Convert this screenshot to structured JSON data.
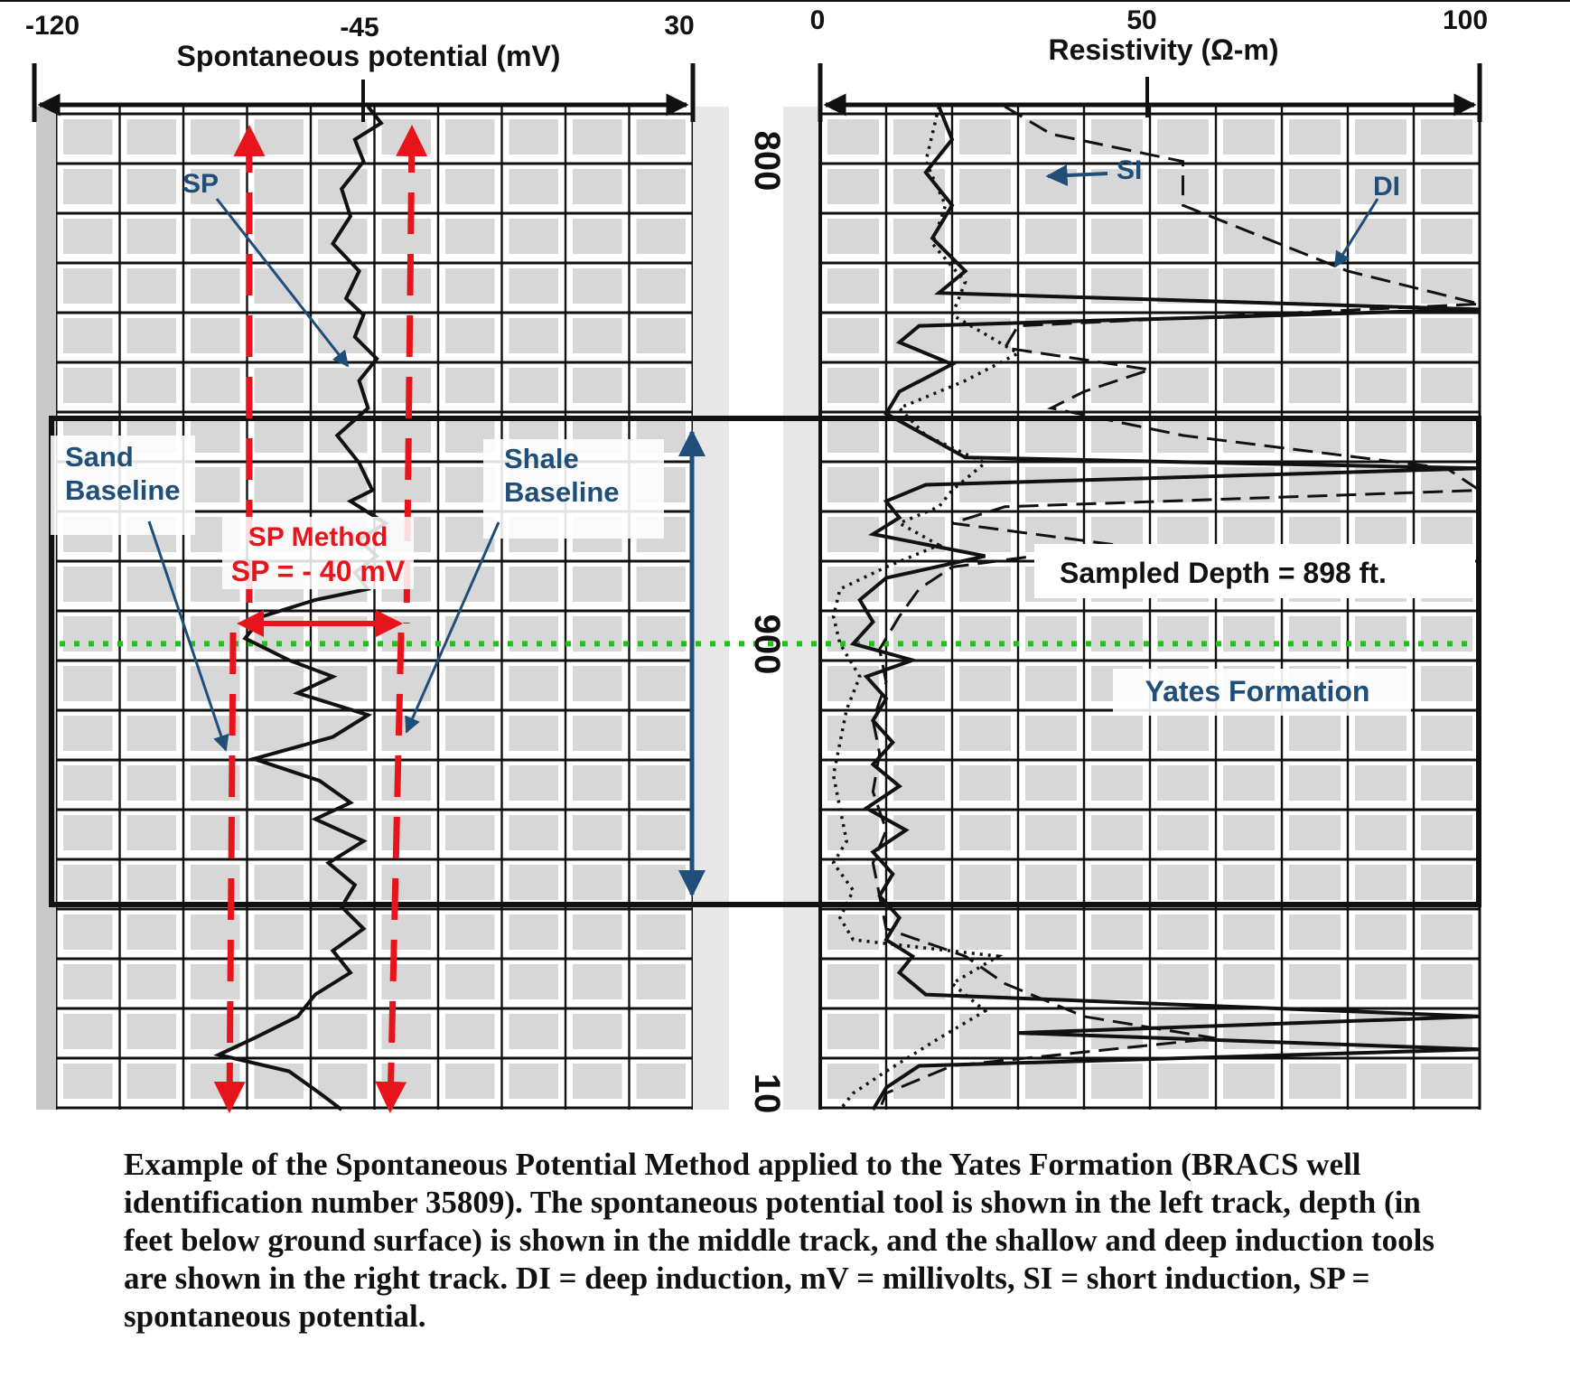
{
  "chart_data": {
    "type": "line",
    "title": "",
    "tracks": [
      {
        "name": "left-track",
        "xlabel": "Spontaneous potential (mV)",
        "xlim": [
          -120,
          30
        ],
        "tick_labels": [
          "-120",
          "-45",
          "30"
        ],
        "series": [
          {
            "name": "SP",
            "style": "solid",
            "points": [
              [
                -44,
                800
              ],
              [
                -41,
                803
              ],
              [
                -47,
                806
              ],
              [
                -45,
                810
              ],
              [
                -50,
                815
              ],
              [
                -48,
                820
              ],
              [
                -52,
                825
              ],
              [
                -46,
                830
              ],
              [
                -49,
                835
              ],
              [
                -45,
                838
              ],
              [
                -47,
                842
              ],
              [
                -42,
                846
              ],
              [
                -46,
                850
              ],
              [
                -44,
                855
              ],
              [
                -51,
                860
              ],
              [
                -46,
                865
              ],
              [
                -43,
                870
              ],
              [
                -48,
                872
              ],
              [
                -40,
                876
              ],
              [
                -46,
                879
              ],
              [
                -42,
                882
              ],
              [
                -47,
                885
              ],
              [
                -44,
                888
              ],
              [
                -56,
                890
              ],
              [
                -68,
                893
              ],
              [
                -72,
                897
              ],
              [
                -62,
                901
              ],
              [
                -52,
                904
              ],
              [
                -60,
                907
              ],
              [
                -44,
                911
              ],
              [
                -52,
                915
              ],
              [
                -70,
                919
              ],
              [
                -55,
                923
              ],
              [
                -48,
                927
              ],
              [
                -56,
                930
              ],
              [
                -45,
                934
              ],
              [
                -53,
                938
              ],
              [
                -47,
                942
              ],
              [
                -50,
                946
              ],
              [
                -45,
                950
              ],
              [
                -52,
                954
              ],
              [
                -48,
                958
              ],
              [
                -56,
                962
              ],
              [
                -60,
                966
              ],
              [
                -70,
                970
              ],
              [
                -78,
                973
              ],
              [
                -62,
                976
              ],
              [
                -55,
                980
              ],
              [
                -50,
                983
              ]
            ]
          }
        ],
        "baselines": [
          {
            "name": "Sand Baseline",
            "value": -80
          },
          {
            "name": "Shale Baseline",
            "value": -40
          }
        ]
      },
      {
        "name": "middle-track",
        "depth_labels": [
          "800",
          "900",
          "10"
        ]
      },
      {
        "name": "right-track",
        "xlabel": "Resistivity (Ω-m)",
        "xlim": [
          0,
          100
        ],
        "tick_labels": [
          "0",
          "50",
          "100"
        ],
        "series": [
          {
            "name": "SI",
            "style": "dotted",
            "points": [
              [
                18,
                800
              ],
              [
                16,
                810
              ],
              [
                19,
                818
              ],
              [
                17,
                825
              ],
              [
                22,
                832
              ],
              [
                20,
                838
              ],
              [
                30,
                845
              ],
              [
                22,
                850
              ],
              [
                12,
                855
              ],
              [
                16,
                860
              ],
              [
                25,
                865
              ],
              [
                20,
                870
              ],
              [
                18,
                873
              ],
              [
                12,
                876
              ],
              [
                18,
                880
              ],
              [
                10,
                884
              ],
              [
                3,
                888
              ],
              [
                2,
                893
              ],
              [
                3,
                898
              ],
              [
                6,
                904
              ],
              [
                4,
                910
              ],
              [
                3,
                916
              ],
              [
                2,
                922
              ],
              [
                3,
                928
              ],
              [
                4,
                934
              ],
              [
                2,
                938
              ],
              [
                5,
                943
              ],
              [
                3,
                948
              ],
              [
                5,
                952
              ],
              [
                27,
                955
              ],
              [
                20,
                960
              ],
              [
                25,
                965
              ],
              [
                18,
                970
              ],
              [
                10,
                976
              ],
              [
                5,
                980
              ],
              [
                3,
                983
              ]
            ]
          },
          {
            "name": "DI",
            "style": "dashed",
            "points": [
              [
                28,
                800
              ],
              [
                35,
                805
              ],
              [
                55,
                810
              ],
              [
                55,
                818
              ],
              [
                80,
                830
              ],
              [
                100,
                836
              ],
              [
                30,
                840
              ],
              [
                28,
                844
              ],
              [
                50,
                848
              ],
              [
                40,
                852
              ],
              [
                35,
                855
              ],
              [
                55,
                860
              ],
              [
                95,
                866
              ],
              [
                100,
                870
              ],
              [
                28,
                873
              ],
              [
                20,
                876
              ],
              [
                45,
                880
              ],
              [
                20,
                884
              ],
              [
                15,
                888
              ],
              [
                12,
                893
              ],
              [
                9,
                899
              ],
              [
                10,
                905
              ],
              [
                8,
                912
              ],
              [
                9,
                918
              ],
              [
                8,
                925
              ],
              [
                10,
                932
              ],
              [
                8,
                938
              ],
              [
                9,
                944
              ],
              [
                10,
                950
              ],
              [
                22,
                955
              ],
              [
                28,
                960
              ],
              [
                40,
                966
              ],
              [
                60,
                970
              ],
              [
                20,
                975
              ],
              [
                10,
                980
              ],
              [
                9,
                983
              ]
            ]
          },
          {
            "name": "",
            "style": "solid",
            "points": [
              [
                18,
                800
              ],
              [
                20,
                806
              ],
              [
                16,
                812
              ],
              [
                20,
                818
              ],
              [
                17,
                824
              ],
              [
                22,
                830
              ],
              [
                18,
                834
              ],
              [
                100,
                837
              ],
              [
                15,
                840
              ],
              [
                12,
                843
              ],
              [
                20,
                847
              ],
              [
                12,
                852
              ],
              [
                10,
                856
              ],
              [
                16,
                860
              ],
              [
                22,
                864
              ],
              [
                100,
                866
              ],
              [
                16,
                869
              ],
              [
                10,
                872
              ],
              [
                12,
                875
              ],
              [
                8,
                878
              ],
              [
                25,
                882
              ],
              [
                10,
                886
              ],
              [
                6,
                890
              ],
              [
                8,
                894
              ],
              [
                5,
                898
              ],
              [
                14,
                901
              ],
              [
                7,
                904
              ],
              [
                10,
                908
              ],
              [
                8,
                912
              ],
              [
                11,
                916
              ],
              [
                8,
                920
              ],
              [
                12,
                924
              ],
              [
                7,
                928
              ],
              [
                13,
                932
              ],
              [
                8,
                936
              ],
              [
                11,
                940
              ],
              [
                9,
                944
              ],
              [
                12,
                948
              ],
              [
                10,
                952
              ],
              [
                14,
                955
              ],
              [
                12,
                958
              ],
              [
                16,
                962
              ],
              [
                100,
                966
              ],
              [
                30,
                969
              ],
              [
                100,
                972
              ],
              [
                15,
                975
              ],
              [
                10,
                979
              ],
              [
                8,
                983
              ]
            ]
          }
        ]
      }
    ],
    "ylim": [
      800,
      983
    ],
    "annotations": {
      "sp_label": "SP",
      "si_label": "SI",
      "di_label": "DI",
      "sand_baseline_line1": "Sand",
      "sand_baseline_line2": "Baseline",
      "shale_baseline_line1": "Shale",
      "shale_baseline_line2": "Baseline",
      "sp_method_line1": "SP Method",
      "sp_method_line2": "SP = - 40 mV",
      "sampled_depth": "Sampled Depth = 898 ft.",
      "formation": "Yates Formation"
    },
    "sampled_depth_ft": 898,
    "formation_interval_ft": [
      861,
      955
    ],
    "colors": {
      "grid": "#111111",
      "grid_fill": "#d7d7d7",
      "sp_guides": "#e8141b",
      "annotation_blue": "#1f4e79",
      "sampled_depth_line": "#22c01e",
      "curve": "#111111"
    }
  },
  "caption": "Example of the Spontaneous Potential Method applied to the Yates Formation (BRACS well identification number 35809). The spontaneous potential tool is shown in the left track, depth (in feet below ground surface) is shown in the middle track, and the shallow and deep induction tools are shown in the right track. DI = deep induction, mV = millivolts, SI = short induction, SP = spontaneous potential."
}
